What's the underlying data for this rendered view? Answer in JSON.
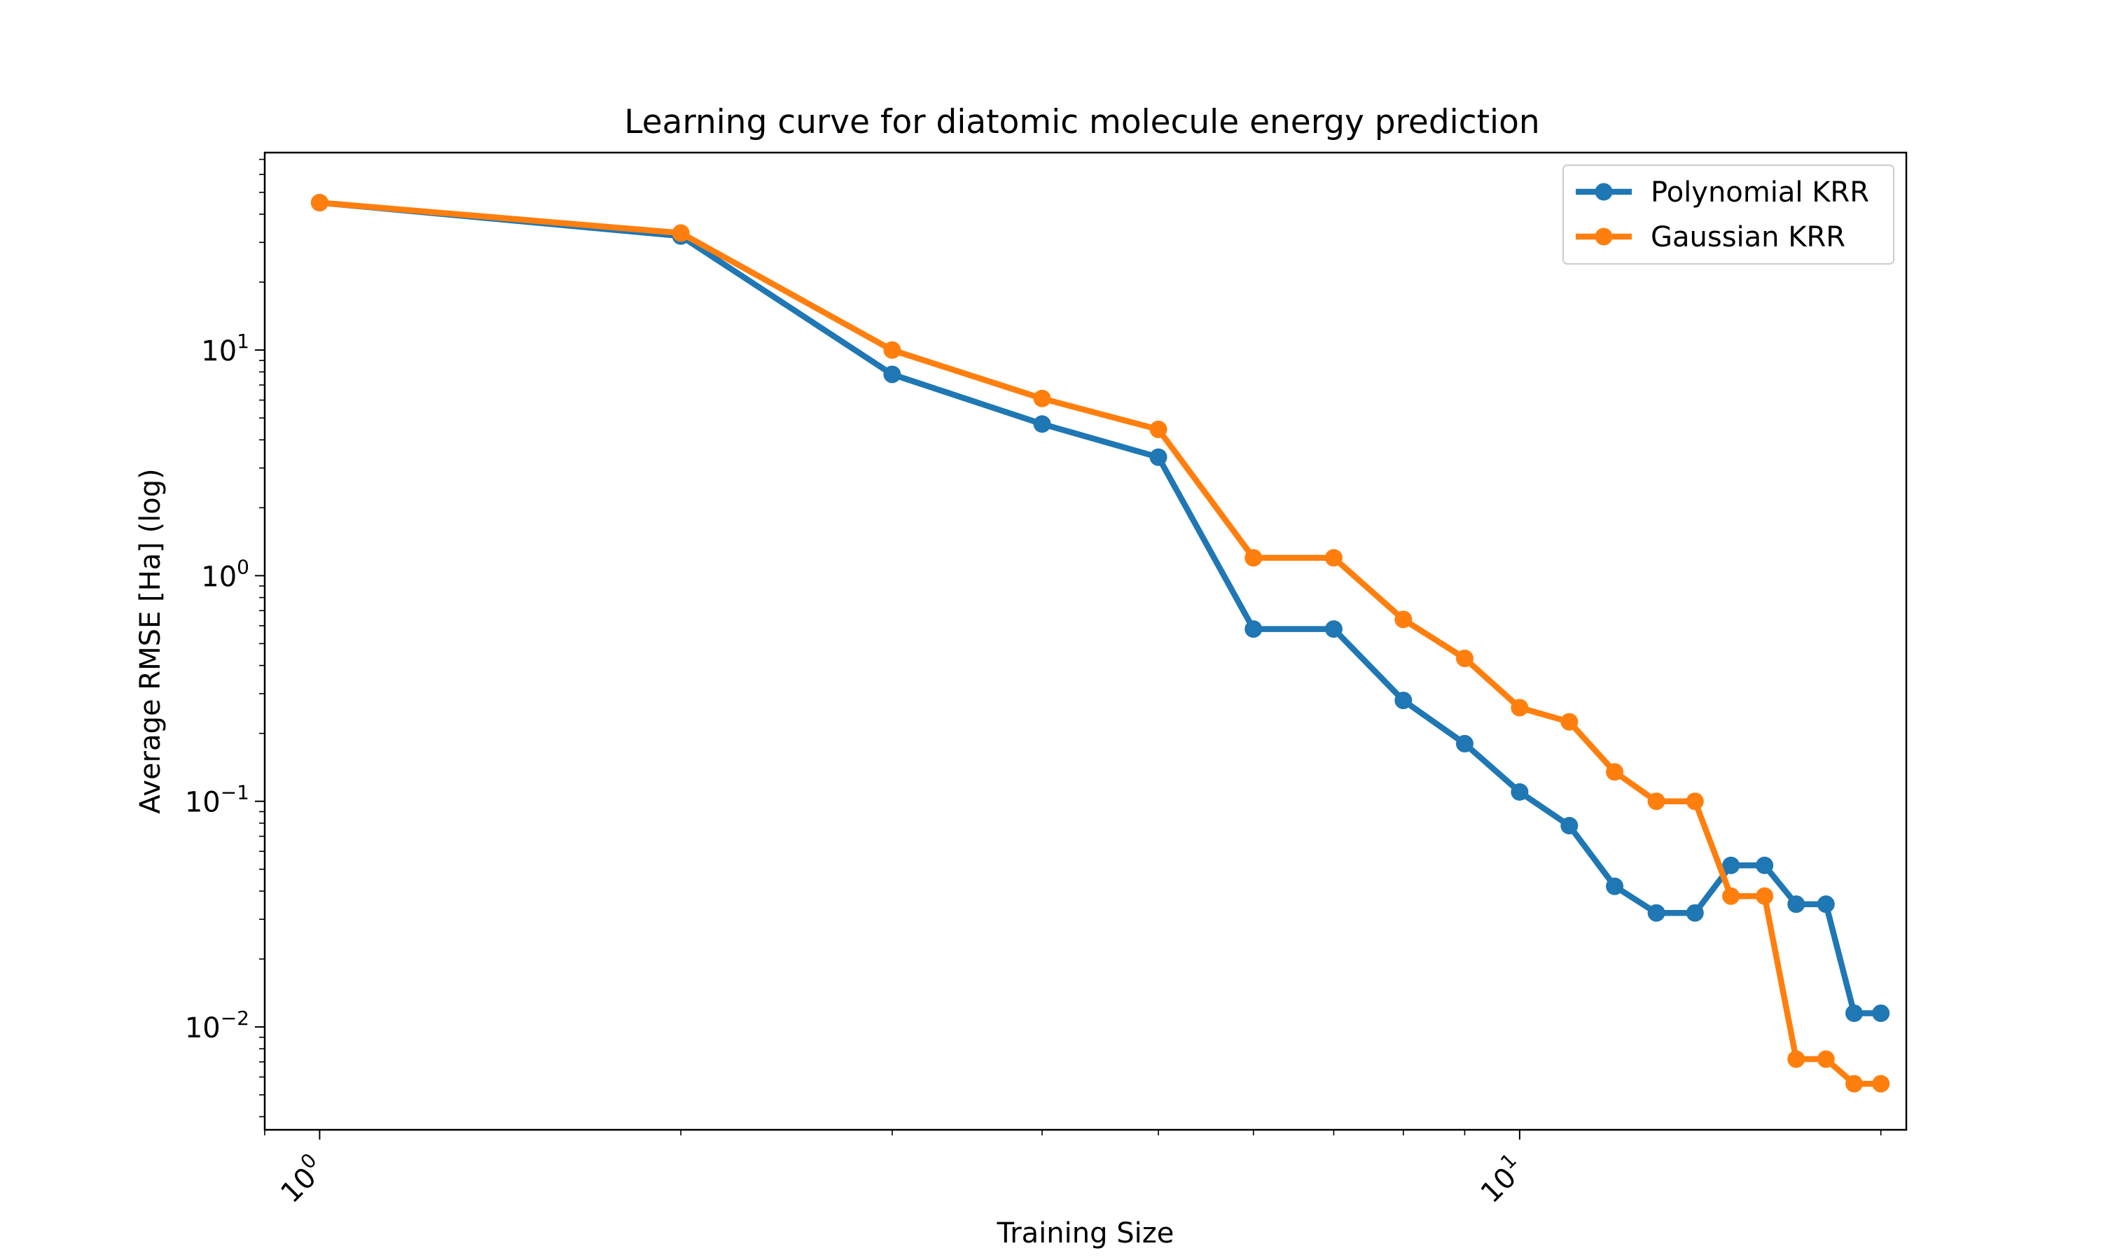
{
  "chart_data": {
    "type": "line",
    "title": "Learning curve for diatomic molecule energy prediction",
    "xlabel": "Training Size",
    "ylabel": "Average RMSE [Ha] (log)",
    "xscale": "log",
    "yscale": "log",
    "xlim": [
      0.9,
      21
    ],
    "ylim": [
      0.0035,
      75
    ],
    "grid": false,
    "legend_position": "top-right",
    "xticks": [
      {
        "value": 1,
        "base": "10",
        "exp": "0"
      },
      {
        "value": 10,
        "base": "10",
        "exp": "1"
      }
    ],
    "yticks": [
      {
        "value": 0.01,
        "base": "10",
        "exp": "−2"
      },
      {
        "value": 0.1,
        "base": "10",
        "exp": "−1"
      },
      {
        "value": 1,
        "base": "10",
        "exp": "0"
      },
      {
        "value": 10,
        "base": "10",
        "exp": "1"
      }
    ],
    "x": [
      1,
      2,
      3,
      4,
      5,
      6,
      7,
      8,
      9,
      10,
      11,
      12,
      13,
      14,
      15,
      16,
      17,
      18,
      19,
      20
    ],
    "series": [
      {
        "name": "Polynomial KRR",
        "color": "#1f77b4",
        "values": [
          45,
          32,
          7.8,
          4.7,
          3.35,
          0.58,
          0.58,
          0.28,
          0.18,
          0.11,
          0.078,
          0.042,
          0.032,
          0.032,
          0.052,
          0.052,
          0.035,
          0.035,
          0.0115,
          0.0115
        ]
      },
      {
        "name": "Gaussian KRR",
        "color": "#ff7f0e",
        "values": [
          45,
          33,
          10,
          6.1,
          4.45,
          1.2,
          1.2,
          0.64,
          0.43,
          0.26,
          0.225,
          0.135,
          0.1,
          0.1,
          0.038,
          0.038,
          0.0072,
          0.0072,
          0.0056,
          0.0056
        ]
      }
    ]
  }
}
